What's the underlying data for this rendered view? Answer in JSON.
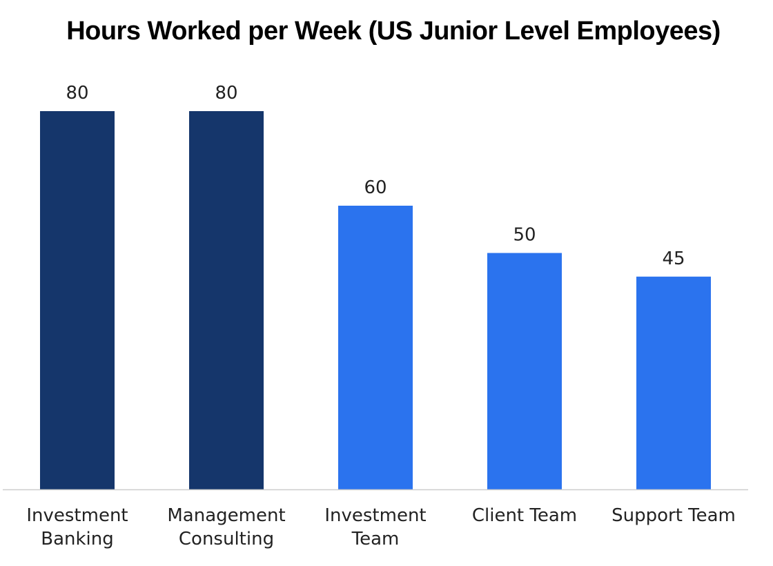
{
  "chart_data": {
    "type": "bar",
    "title": "Hours Worked per Week (US Junior Level Employees)",
    "xlabel": "",
    "ylabel": "",
    "categories": [
      [
        "Investment",
        "Banking"
      ],
      [
        "Management",
        "Consulting"
      ],
      [
        "Investment",
        "Team"
      ],
      [
        "Client Team"
      ],
      [
        "Support Team"
      ]
    ],
    "values": [
      80,
      80,
      60,
      50,
      45
    ],
    "bar_colors": [
      "#15366B",
      "#15366B",
      "#2B73EE",
      "#2B73EE",
      "#2B73EE"
    ],
    "axis_color": "#CCCCCC",
    "ylim": [
      0,
      80
    ],
    "grid": false,
    "legend": "none"
  }
}
